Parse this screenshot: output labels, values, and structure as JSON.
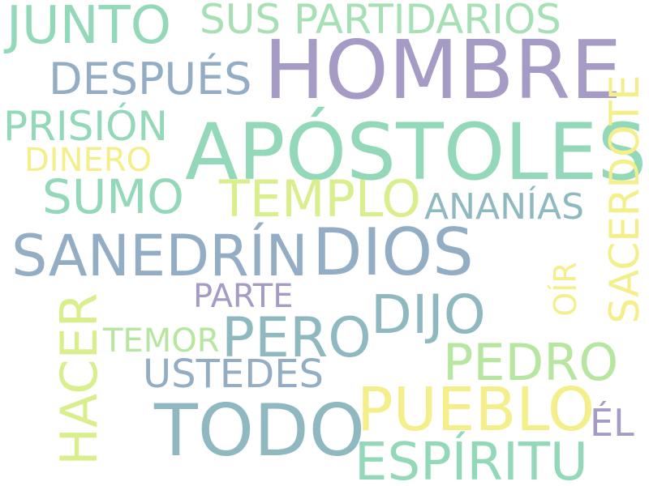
{
  "colors": {
    "background": "#ffffff",
    "purple": "#a59bc4",
    "mint": "#93d9b9",
    "slate_blue": "#93aec4",
    "teal_gray": "#8fb8c0",
    "light_green": "#b6e6a0",
    "yellow_green": "#d9ee8c",
    "yellow": "#f4ef8a"
  },
  "words": {
    "hombre": "HOMBRE",
    "apostoles": "APÓSTOLES",
    "todo": "TODO",
    "sanedrin": "SANEDRÍN",
    "dios": "DIOS",
    "pueblo": "PUEBLO",
    "espiritu": "ESPÍRITU",
    "pero": "PERO",
    "dijo": "DIJO",
    "junto": "JUNTO",
    "templo": "TEMPLO",
    "pedro": "PEDRO",
    "sumo": "SUMO",
    "despues": "DESPUÉS",
    "prision": "PRISIÓN",
    "sus_partidarios": "SUS PARTIDARIOS",
    "ustedes": "USTEDES",
    "ananias": "ANANÍAS",
    "dinero": "DINERO",
    "parte": "PARTE",
    "temor": "TEMOR",
    "el": "ÉL",
    "hacer": "HACER",
    "sacerdote": "SACERDOTE",
    "oir": "OÍR"
  }
}
